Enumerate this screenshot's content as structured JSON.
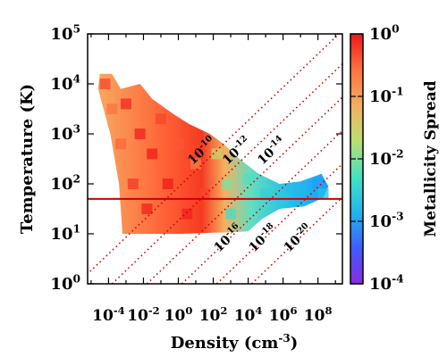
{
  "chart_data": {
    "type": "heatmap",
    "title": "",
    "xlabel": "Density (cm",
    "xlabel_exp": "-3",
    "xlabel_tail": ")",
    "ylabel": "Temperature (K)",
    "colorbar_label": "Metallicity Spread",
    "x_scale": "log",
    "y_scale": "log",
    "color_scale": "log",
    "xlim_log10": [
      -5.2,
      9.4
    ],
    "ylim_log10": [
      0,
      5
    ],
    "clim_log10": [
      -4,
      0
    ],
    "x_ticks": [
      {
        "base": "10",
        "exp": "-4",
        "log": -4
      },
      {
        "base": "10",
        "exp": "-2",
        "log": -2
      },
      {
        "base": "10",
        "exp": "0",
        "log": 0
      },
      {
        "base": "10",
        "exp": "2",
        "log": 2
      },
      {
        "base": "10",
        "exp": "4",
        "log": 4
      },
      {
        "base": "10",
        "exp": "6",
        "log": 6
      },
      {
        "base": "10",
        "exp": "8",
        "log": 8
      }
    ],
    "y_ticks": [
      {
        "base": "10",
        "exp": "0",
        "log": 0
      },
      {
        "base": "10",
        "exp": "1",
        "log": 1
      },
      {
        "base": "10",
        "exp": "2",
        "log": 2
      },
      {
        "base": "10",
        "exp": "3",
        "log": 3
      },
      {
        "base": "10",
        "exp": "4",
        "log": 4
      },
      {
        "base": "10",
        "exp": "5",
        "log": 5
      }
    ],
    "colorbar_ticks": [
      {
        "base": "10",
        "exp": "0",
        "log": 0
      },
      {
        "base": "10",
        "exp": "-1",
        "log": -1
      },
      {
        "base": "10",
        "exp": "-2",
        "log": -2
      },
      {
        "base": "10",
        "exp": "-3",
        "log": -3
      },
      {
        "base": "10",
        "exp": "-4",
        "log": -4
      }
    ],
    "colormap": [
      "#8a2be2",
      "#3f5bff",
      "#1fb4ee",
      "#3fe0c8",
      "#b8e070",
      "#f5b060",
      "#ff7040",
      "#f01818"
    ],
    "reference_line": {
      "type": "horizontal",
      "y": 50,
      "color": "#cc0000"
    },
    "jeans_mass_lines": {
      "color": "#cc0000",
      "style": "dotted",
      "slope": 0.3333,
      "lines": [
        {
          "label_base": "10",
          "label_exp": "-10",
          "x_at_y_bottom": -5.8
        },
        {
          "label_base": "10",
          "label_exp": "-12",
          "x_at_y_bottom": -3.8
        },
        {
          "label_base": "10",
          "label_exp": "-14",
          "x_at_y_bottom": -1.8
        },
        {
          "label_base": "10",
          "label_exp": "-16",
          "x_at_y_bottom": 0.2
        },
        {
          "label_base": "10",
          "label_exp": "-18",
          "x_at_y_bottom": 2.2
        },
        {
          "label_base": "10",
          "label_exp": "-20",
          "x_at_y_bottom": 4.2
        }
      ]
    },
    "region_outline_logn_logT": [
      [
        -4.5,
        4.2
      ],
      [
        -3.8,
        4.2
      ],
      [
        -3.3,
        3.9
      ],
      [
        -2.2,
        4.0
      ],
      [
        -1.5,
        3.7
      ],
      [
        -0.3,
        3.4
      ],
      [
        0.6,
        3.2
      ],
      [
        1.8,
        3.0
      ],
      [
        2.6,
        2.8
      ],
      [
        3.5,
        2.5
      ],
      [
        4.6,
        2.2
      ],
      [
        5.8,
        2.0
      ],
      [
        7.0,
        2.05
      ],
      [
        8.2,
        2.2
      ],
      [
        8.6,
        1.95
      ],
      [
        8.3,
        1.72
      ],
      [
        7.2,
        1.55
      ],
      [
        5.8,
        1.5
      ],
      [
        4.8,
        1.3
      ],
      [
        4.0,
        1.05
      ],
      [
        3.0,
        1.03
      ],
      [
        1.8,
        1.02
      ],
      [
        0.2,
        1.0
      ],
      [
        -1.8,
        1.0
      ],
      [
        -3.2,
        1.0
      ],
      [
        -3.4,
        2.0
      ],
      [
        -3.9,
        3.0
      ],
      [
        -4.6,
        3.9
      ]
    ],
    "data_points": [
      {
        "logn": -4.2,
        "logT": 4.0,
        "logZ": -0.3
      },
      {
        "logn": -3.8,
        "logT": 3.5,
        "logZ": -0.6
      },
      {
        "logn": -3.3,
        "logT": 2.8,
        "logZ": -0.5
      },
      {
        "logn": -3.0,
        "logT": 3.6,
        "logZ": -0.1
      },
      {
        "logn": -2.6,
        "logT": 2.0,
        "logZ": -0.2
      },
      {
        "logn": -2.2,
        "logT": 3.0,
        "logZ": -0.05
      },
      {
        "logn": -1.8,
        "logT": 1.5,
        "logZ": -0.05
      },
      {
        "logn": -1.5,
        "logT": 2.6,
        "logZ": -0.02
      },
      {
        "logn": -1.0,
        "logT": 3.3,
        "logZ": -0.3
      },
      {
        "logn": -0.6,
        "logT": 2.0,
        "logZ": -0.02
      },
      {
        "logn": 0.0,
        "logT": 2.8,
        "logZ": -0.4
      },
      {
        "logn": 0.5,
        "logT": 1.4,
        "logZ": -0.05
      },
      {
        "logn": 1.0,
        "logT": 2.4,
        "logZ": -0.7
      },
      {
        "logn": 1.5,
        "logT": 1.8,
        "logZ": -0.3
      },
      {
        "logn": 2.2,
        "logT": 2.6,
        "logZ": -1.6
      },
      {
        "logn": 2.8,
        "logT": 2.0,
        "logZ": -2.0
      },
      {
        "logn": 3.0,
        "logT": 1.4,
        "logZ": -2.3
      },
      {
        "logn": 4.0,
        "logT": 2.1,
        "logZ": -2.2
      },
      {
        "logn": 5.0,
        "logT": 1.8,
        "logZ": -2.5
      },
      {
        "logn": 6.0,
        "logT": 1.7,
        "logZ": -2.6
      },
      {
        "logn": 7.0,
        "logT": 1.9,
        "logZ": -2.8
      },
      {
        "logn": 8.0,
        "logT": 2.0,
        "logZ": -3.0
      },
      {
        "logn": 8.3,
        "logT": 1.8,
        "logZ": -2.7
      }
    ]
  }
}
